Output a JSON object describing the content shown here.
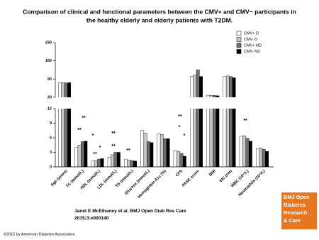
{
  "chart_data": {
    "type": "bar",
    "title_lines": [
      "Comparison of clinical and functional parameters between the CMV+ and CMV− participants in",
      "the healthy elderly and elderly patients with T2DM."
    ],
    "categories": [
      "Age (years)",
      "TC (mmol/L)",
      "HDL (mmol/L)",
      "LDL (mmol/L)",
      "TG (mmol/L)",
      "Glucose (mmol/L)",
      "Hemoglobin A1c (%)",
      "CFS",
      "PASE score",
      "BMI",
      "WC (cm)",
      "WBC (10⁹/L)",
      "Neutrophils (10⁹/L)"
    ],
    "series": [
      {
        "name": "CMV+ D",
        "color": "#ffffff",
        "values": [
          75,
          4.0,
          1.2,
          2.0,
          1.6,
          7.5,
          6.8,
          3.4,
          100,
          28,
          100,
          6.3,
          3.8
        ]
      },
      {
        "name": "CMV- D",
        "color": "#c8c8c8",
        "values": [
          76,
          4.5,
          1.3,
          2.5,
          1.4,
          7.0,
          6.7,
          3.2,
          105,
          27,
          102,
          6.4,
          3.9
        ]
      },
      {
        "name": "CMV+ ND",
        "color": "#6e6e6e",
        "values": [
          75,
          5.2,
          1.6,
          3.0,
          1.3,
          5.2,
          5.8,
          2.8,
          125,
          27,
          100,
          5.9,
          3.6
        ]
      },
      {
        "name": "CMV- ND",
        "color": "#000000",
        "values": [
          76,
          5.3,
          1.7,
          3.0,
          1.2,
          5.0,
          5.8,
          2.2,
          100,
          26,
          95,
          5.3,
          3.2
        ]
      }
    ],
    "panels": [
      {
        "ylim": [
          20,
          230
        ],
        "yticks": [
          20,
          90,
          160,
          230
        ]
      },
      {
        "ylim": [
          0,
          12
        ],
        "yticks": [
          0,
          3,
          6,
          9,
          12
        ]
      }
    ],
    "annotations": [
      "**",
      "**",
      "*",
      "*",
      "**",
      "**",
      "**",
      "**",
      "**",
      "*",
      "*",
      "**"
    ],
    "source_lines": [
      "Janet E McElhaney et al. BMJ Open Diab Res Care",
      "2015;3:e000140"
    ],
    "logo_lines": [
      "BMJ Open",
      "Diabetes",
      "Research",
      "& Care"
    ],
    "copyright": "©2015 by American Diabetes Association"
  }
}
